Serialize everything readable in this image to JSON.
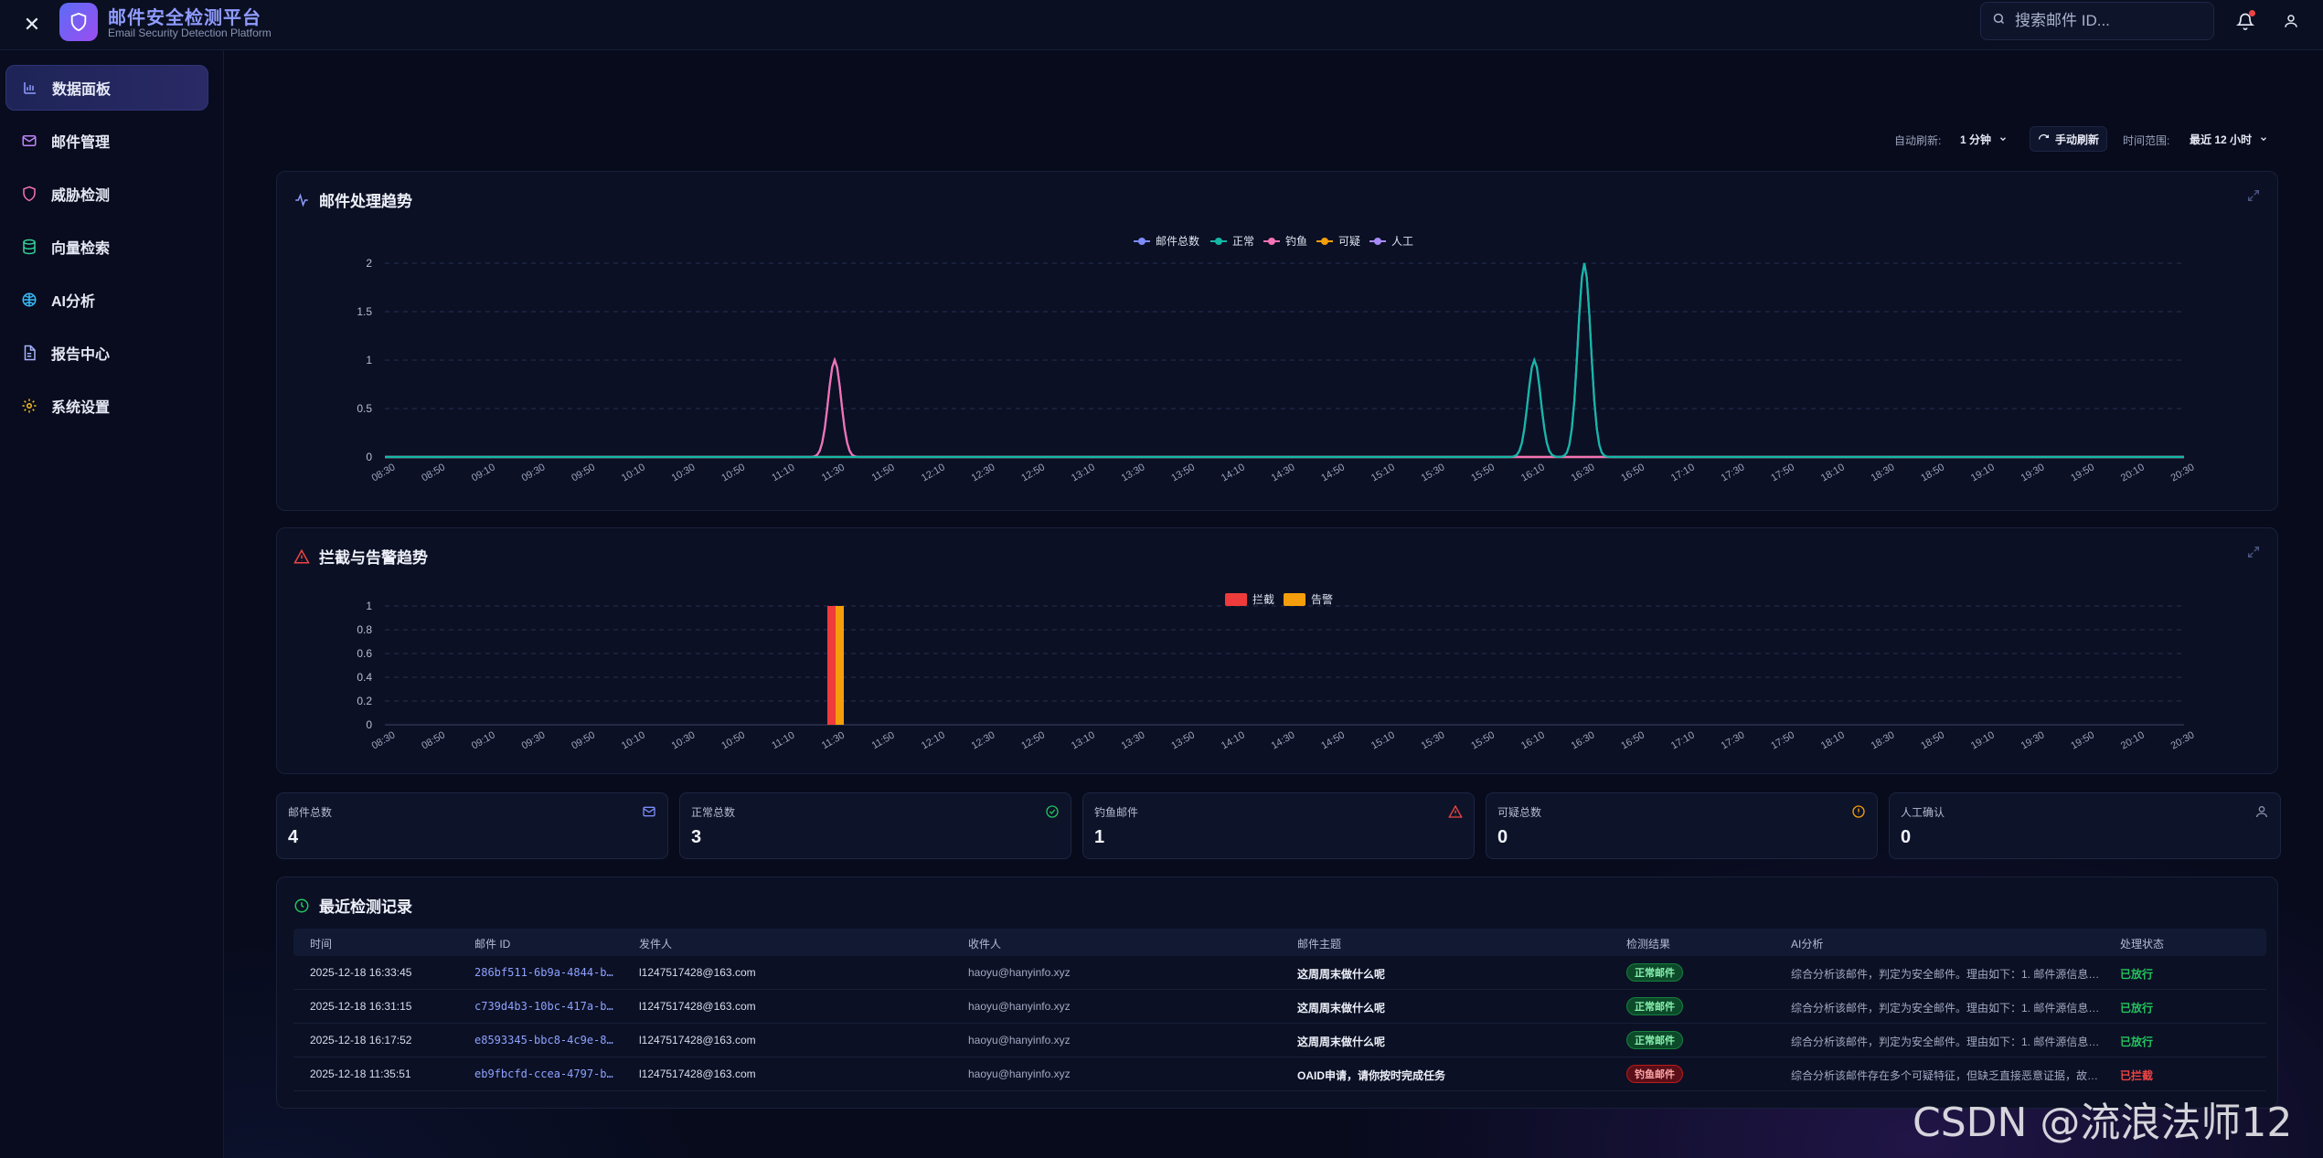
{
  "header": {
    "close_label": "✕",
    "title": "邮件安全检测平台",
    "subtitle": "Email Security Detection Platform",
    "search_placeholder": "搜索邮件 ID..."
  },
  "sidebar": {
    "items": [
      {
        "label": "数据面板",
        "icon": "bar-chart-icon",
        "active": true
      },
      {
        "label": "邮件管理",
        "icon": "mail-icon",
        "active": false
      },
      {
        "label": "威胁检测",
        "icon": "shield-icon",
        "active": false
      },
      {
        "label": "向量检索",
        "icon": "database-icon",
        "active": false
      },
      {
        "label": "AI分析",
        "icon": "brain-icon",
        "active": false
      },
      {
        "label": "报告中心",
        "icon": "document-icon",
        "active": false
      },
      {
        "label": "系统设置",
        "icon": "gear-icon",
        "active": false
      }
    ]
  },
  "toolbar": {
    "auto_refresh_label": "自动刷新:",
    "auto_refresh_value": "1 分钟",
    "manual_refresh_label": "手动刷新",
    "time_range_label": "时间范围:",
    "time_range_value": "最近 12 小时"
  },
  "trend_panel": {
    "title": "邮件处理趋势"
  },
  "block_panel": {
    "title": "拦截与告警趋势"
  },
  "chart_data": [
    {
      "type": "line",
      "title": "邮件处理趋势",
      "x": [
        "08:30",
        "08:50",
        "09:10",
        "09:30",
        "09:50",
        "10:10",
        "10:30",
        "10:50",
        "11:10",
        "11:30",
        "11:50",
        "12:10",
        "12:30",
        "12:50",
        "13:10",
        "13:30",
        "13:50",
        "14:10",
        "14:30",
        "14:50",
        "15:10",
        "15:30",
        "15:50",
        "16:10",
        "16:30",
        "16:50",
        "17:10",
        "17:30",
        "17:50",
        "18:10",
        "18:30",
        "18:50",
        "19:10",
        "19:30",
        "19:50",
        "20:10",
        "20:30"
      ],
      "ylim": [
        0,
        2
      ],
      "yticks": [
        "0",
        "0.5",
        "1",
        "1.5",
        "2"
      ],
      "legend_position": "top-center",
      "series": [
        {
          "name": "邮件总数",
          "color": "#7c8cf8",
          "values": [
            0,
            0,
            0,
            0,
            0,
            0,
            0,
            0,
            0,
            1,
            0,
            0,
            0,
            0,
            0,
            0,
            0,
            0,
            0,
            0,
            0,
            0,
            0,
            1,
            2,
            0,
            0,
            0,
            0,
            0,
            0,
            0,
            0,
            0,
            0,
            0,
            0
          ]
        },
        {
          "name": "正常",
          "color": "#14b8a6",
          "values": [
            0,
            0,
            0,
            0,
            0,
            0,
            0,
            0,
            0,
            0,
            0,
            0,
            0,
            0,
            0,
            0,
            0,
            0,
            0,
            0,
            0,
            0,
            0,
            1,
            2,
            0,
            0,
            0,
            0,
            0,
            0,
            0,
            0,
            0,
            0,
            0,
            0
          ]
        },
        {
          "name": "钓鱼",
          "color": "#f472b6",
          "values": [
            0,
            0,
            0,
            0,
            0,
            0,
            0,
            0,
            0,
            1,
            0,
            0,
            0,
            0,
            0,
            0,
            0,
            0,
            0,
            0,
            0,
            0,
            0,
            0,
            0,
            0,
            0,
            0,
            0,
            0,
            0,
            0,
            0,
            0,
            0,
            0,
            0
          ]
        },
        {
          "name": "可疑",
          "color": "#f59e0b",
          "values": [
            0,
            0,
            0,
            0,
            0,
            0,
            0,
            0,
            0,
            0,
            0,
            0,
            0,
            0,
            0,
            0,
            0,
            0,
            0,
            0,
            0,
            0,
            0,
            0,
            0,
            0,
            0,
            0,
            0,
            0,
            0,
            0,
            0,
            0,
            0,
            0,
            0
          ]
        },
        {
          "name": "人工",
          "color": "#a78bfa",
          "values": [
            0,
            0,
            0,
            0,
            0,
            0,
            0,
            0,
            0,
            0,
            0,
            0,
            0,
            0,
            0,
            0,
            0,
            0,
            0,
            0,
            0,
            0,
            0,
            0,
            0,
            0,
            0,
            0,
            0,
            0,
            0,
            0,
            0,
            0,
            0,
            0,
            0
          ]
        }
      ]
    },
    {
      "type": "bar",
      "title": "拦截与告警趋势",
      "x": [
        "08:30",
        "08:50",
        "09:10",
        "09:30",
        "09:50",
        "10:10",
        "10:30",
        "10:50",
        "11:10",
        "11:30",
        "11:50",
        "12:10",
        "12:30",
        "12:50",
        "13:10",
        "13:30",
        "13:50",
        "14:10",
        "14:30",
        "14:50",
        "15:10",
        "15:30",
        "15:50",
        "16:10",
        "16:30",
        "16:50",
        "17:10",
        "17:30",
        "17:50",
        "18:10",
        "18:30",
        "18:50",
        "19:10",
        "19:30",
        "19:50",
        "20:10",
        "20:30"
      ],
      "ylim": [
        0,
        1
      ],
      "yticks": [
        "0",
        "0.2",
        "0.4",
        "0.6",
        "0.8",
        "1"
      ],
      "legend_position": "top-center",
      "series": [
        {
          "name": "拦截",
          "color": "#ef3b3b",
          "values": [
            0,
            0,
            0,
            0,
            0,
            0,
            0,
            0,
            0,
            1,
            0,
            0,
            0,
            0,
            0,
            0,
            0,
            0,
            0,
            0,
            0,
            0,
            0,
            0,
            0,
            0,
            0,
            0,
            0,
            0,
            0,
            0,
            0,
            0,
            0,
            0,
            0
          ]
        },
        {
          "name": "告警",
          "color": "#f59e0b",
          "values": [
            0,
            0,
            0,
            0,
            0,
            0,
            0,
            0,
            0,
            1,
            0,
            0,
            0,
            0,
            0,
            0,
            0,
            0,
            0,
            0,
            0,
            0,
            0,
            0,
            0,
            0,
            0,
            0,
            0,
            0,
            0,
            0,
            0,
            0,
            0,
            0,
            0
          ]
        }
      ]
    }
  ],
  "stats": [
    {
      "label": "邮件总数",
      "value": "4",
      "icon": "mail-icon",
      "color": "#7c8cf8"
    },
    {
      "label": "正常总数",
      "value": "3",
      "icon": "check-circle-icon",
      "color": "#22c55e"
    },
    {
      "label": "钓鱼邮件",
      "value": "1",
      "icon": "alert-triangle-icon",
      "color": "#ef4444"
    },
    {
      "label": "可疑总数",
      "value": "0",
      "icon": "alert-circle-icon",
      "color": "#f59e0b"
    },
    {
      "label": "人工确认",
      "value": "0",
      "icon": "user-icon",
      "color": "#8a93b2"
    }
  ],
  "records": {
    "title": "最近检测记录",
    "columns": [
      "时间",
      "邮件 ID",
      "发件人",
      "收件人",
      "邮件主题",
      "检测结果",
      "AI分析",
      "处理状态"
    ],
    "rows": [
      {
        "time": "2025-12-18 16:33:45",
        "id": "286bf511-6b9a-4844-b…",
        "sender": "l1247517428@163.com",
        "recipient": "haoyu@hanyinfo.xyz",
        "subject": "这周周末做什么呢",
        "result": "正常邮件",
        "result_type": "normal",
        "ai": "综合分析该邮件，判定为安全邮件。理由如下：1. 邮件源信息…",
        "status": "已放行",
        "status_type": "pass"
      },
      {
        "time": "2025-12-18 16:31:15",
        "id": "c739d4b3-10bc-417a-b…",
        "sender": "l1247517428@163.com",
        "recipient": "haoyu@hanyinfo.xyz",
        "subject": "这周周末做什么呢",
        "result": "正常邮件",
        "result_type": "normal",
        "ai": "综合分析该邮件，判定为安全邮件。理由如下：1. 邮件源信息…",
        "status": "已放行",
        "status_type": "pass"
      },
      {
        "time": "2025-12-18 16:17:52",
        "id": "e8593345-bbc8-4c9e-8…",
        "sender": "l1247517428@163.com",
        "recipient": "haoyu@hanyinfo.xyz",
        "subject": "这周周末做什么呢",
        "result": "正常邮件",
        "result_type": "normal",
        "ai": "综合分析该邮件，判定为安全邮件。理由如下：1. 邮件源信息…",
        "status": "已放行",
        "status_type": "pass"
      },
      {
        "time": "2025-12-18 11:35:51",
        "id": "eb9fbcfd-ccea-4797-b…",
        "sender": "l1247517428@163.com",
        "recipient": "haoyu@hanyinfo.xyz",
        "subject": "OAID申请，请你按时完成任务",
        "result": "钓鱼邮件",
        "result_type": "phish",
        "ai": "综合分析该邮件存在多个可疑特征，但缺乏直接恶意证据，故…",
        "status": "已拦截",
        "status_type": "block"
      }
    ]
  },
  "watermark": "CSDN @流浪法师12"
}
